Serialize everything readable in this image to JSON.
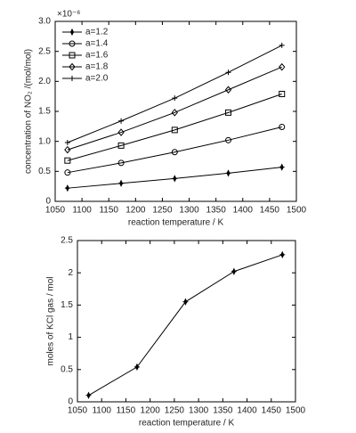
{
  "chart_data": [
    {
      "type": "line",
      "xlabel": "reaction temperature / K",
      "ylabel": "concentration of NO₂ /(mol/mol)",
      "y_multiplier": "×10⁻⁶",
      "x": [
        1073,
        1173,
        1273,
        1373,
        1473
      ],
      "series": [
        {
          "name": "a=1.2",
          "color": "#000000",
          "marker": "star",
          "values": [
            0.22,
            0.3,
            0.38,
            0.47,
            0.57
          ]
        },
        {
          "name": "a=1.4",
          "color": "#000000",
          "marker": "circle",
          "values": [
            0.48,
            0.64,
            0.82,
            1.02,
            1.24
          ]
        },
        {
          "name": "a=1.6",
          "color": "#000000",
          "marker": "square",
          "values": [
            0.68,
            0.93,
            1.19,
            1.48,
            1.79
          ]
        },
        {
          "name": "a=1.8",
          "color": "#000000",
          "marker": "diamond",
          "values": [
            0.86,
            1.15,
            1.48,
            1.86,
            2.24
          ]
        },
        {
          "name": "a=2.0",
          "color": "#000000",
          "marker": "plus",
          "values": [
            0.98,
            1.34,
            1.72,
            2.15,
            2.6
          ]
        }
      ],
      "xlim": [
        1050,
        1500
      ],
      "xticks": [
        1050,
        1100,
        1150,
        1200,
        1250,
        1300,
        1350,
        1400,
        1450,
        1500
      ],
      "ylim": [
        0,
        3
      ],
      "yticks": [
        0,
        0.5,
        {
          "value": 1,
          "label": "1.0"
        },
        1.5,
        {
          "value": 2,
          "label": "2.0"
        },
        2.5,
        {
          "value": 3,
          "label": "3.0"
        }
      ],
      "legend": "upper left"
    },
    {
      "type": "line",
      "xlabel": "reaction temperature / K",
      "ylabel": "moles of KCl gas / mol",
      "x": [
        1073,
        1173,
        1273,
        1373,
        1473
      ],
      "values": [
        0.1,
        0.54,
        1.55,
        2.02,
        2.28
      ],
      "color": "#000000",
      "marker": "star",
      "xlim": [
        1050,
        1500
      ],
      "xticks": [
        1050,
        1100,
        1150,
        1200,
        1250,
        1300,
        1350,
        1400,
        1450,
        1500
      ],
      "ylim": [
        0,
        2.5
      ],
      "yticks": [
        0,
        0.5,
        1,
        1.5,
        2,
        2.5
      ]
    }
  ]
}
